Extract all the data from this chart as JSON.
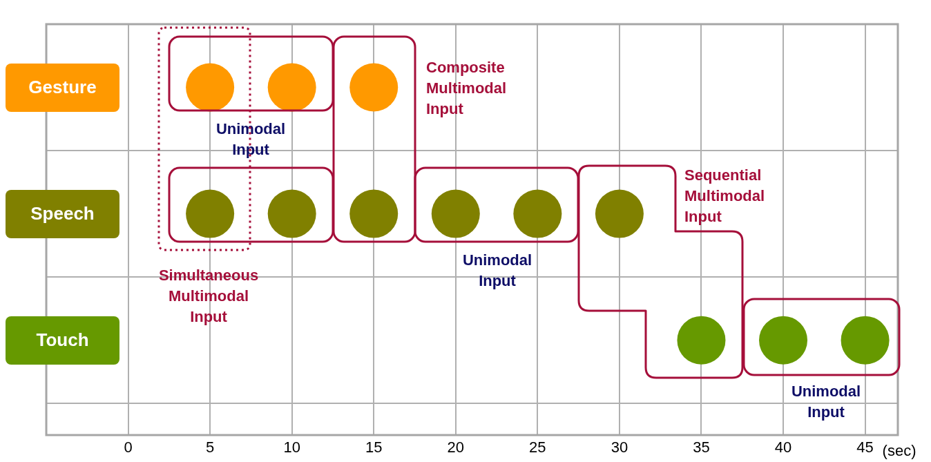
{
  "chart_data": {
    "type": "scatter",
    "orientation": "horizontal",
    "categories": [
      "Gesture",
      "Speech",
      "Touch"
    ],
    "xlabel": "(sec)",
    "xlim": [
      -5,
      47
    ],
    "xticks": [
      0,
      5,
      10,
      15,
      20,
      25,
      30,
      35,
      40,
      45
    ],
    "grid": true,
    "legend": false,
    "marker": "circle",
    "series": [
      {
        "color": "#ff9900",
        "x": [
          "Gesture",
          "Gesture",
          "Gesture"
        ],
        "values": [
          5,
          10,
          15
        ]
      },
      {
        "color": "#808000",
        "x": [
          "Speech",
          "Speech",
          "Speech",
          "Speech",
          "Speech",
          "Speech"
        ],
        "values": [
          5,
          10,
          15,
          20,
          25,
          30
        ]
      },
      {
        "color": "#669900",
        "x": [
          "Touch",
          "Touch",
          "Touch"
        ],
        "values": [
          35,
          40,
          45
        ]
      }
    ],
    "annotations": [
      "Composite Multimodal Input",
      "Unimodal Input",
      "Sequential Multimodal Input",
      "Simultaneous Multimodal Input",
      "Unimodal Input",
      "Unimodal Input"
    ]
  }
}
